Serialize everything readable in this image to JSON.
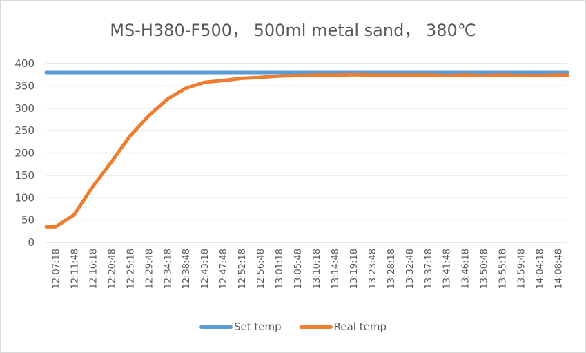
{
  "chart_data": {
    "type": "line",
    "title": "MS-H380-F500，  500ml metal sand，  380℃",
    "xlabel": "",
    "ylabel": "",
    "ylim": [
      0,
      400
    ],
    "yticks": [
      0,
      50,
      100,
      150,
      200,
      250,
      300,
      350,
      400
    ],
    "grid": true,
    "legend_position": "bottom",
    "categories": [
      "12:07:18",
      "12:11:48",
      "12:16:18",
      "12:20:48",
      "12:25:18",
      "12:29:48",
      "12:34:18",
      "12:38:48",
      "12:43:18",
      "12:47:48",
      "12:52:18",
      "12:56:48",
      "13:01:18",
      "13:05:48",
      "13:10:18",
      "13:14:48",
      "13:19:18",
      "13:23:48",
      "13:28:18",
      "13:32:48",
      "13:37:18",
      "13:41:48",
      "13:46:18",
      "13:50:48",
      "13:55:18",
      "13:59:48",
      "14:04:18",
      "14:08:48"
    ],
    "series": [
      {
        "name": "Set temp",
        "color": "#5b9bd5",
        "values": [
          380,
          380,
          380,
          380,
          380,
          380,
          380,
          380,
          380,
          380,
          380,
          380,
          380,
          380,
          380,
          380,
          380,
          380,
          380,
          380,
          380,
          380,
          380,
          380,
          380,
          380,
          380,
          380
        ]
      },
      {
        "name": "Real temp",
        "color": "#ed7d31",
        "values": [
          35,
          62,
          125,
          180,
          238,
          283,
          320,
          345,
          358,
          362,
          367,
          369,
          372,
          373,
          374,
          374,
          375,
          374,
          374,
          374,
          374,
          373,
          374,
          373,
          374,
          373,
          373,
          374
        ]
      }
    ]
  },
  "legend": {
    "items": [
      {
        "label": "Set temp",
        "color": "#5b9bd5"
      },
      {
        "label": "Real temp",
        "color": "#ed7d31"
      }
    ]
  }
}
